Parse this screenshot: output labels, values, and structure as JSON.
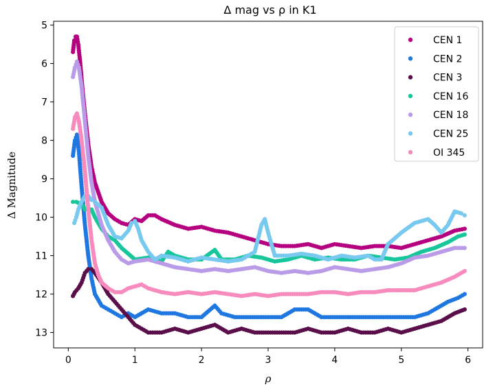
{
  "chart_data": {
    "type": "scatter",
    "title": "Δ mag vs ρ in K1",
    "xlabel": "ρ",
    "ylabel": "Δ Magnitude",
    "xlim": [
      -0.22,
      6.22
    ],
    "ylim": [
      13.4,
      4.9
    ],
    "y_inverted": true,
    "xticks": [
      0,
      1,
      2,
      3,
      4,
      5,
      6
    ],
    "yticks": [
      5,
      6,
      7,
      8,
      9,
      10,
      11,
      12,
      13
    ],
    "grid": false,
    "legend_position": "upper right",
    "series": [
      {
        "name": "CEN 1",
        "color": "#b5007f",
        "points": [
          [
            0.07,
            5.7
          ],
          [
            0.09,
            5.4
          ],
          [
            0.11,
            5.3
          ],
          [
            0.13,
            5.3
          ],
          [
            0.15,
            5.5
          ],
          [
            0.18,
            6.0
          ],
          [
            0.21,
            6.6
          ],
          [
            0.25,
            7.3
          ],
          [
            0.3,
            8.1
          ],
          [
            0.35,
            8.7
          ],
          [
            0.4,
            9.1
          ],
          [
            0.5,
            9.6
          ],
          [
            0.6,
            9.9
          ],
          [
            0.7,
            10.05
          ],
          [
            0.8,
            10.15
          ],
          [
            0.9,
            10.2
          ],
          [
            1.0,
            10.05
          ],
          [
            1.1,
            10.1
          ],
          [
            1.2,
            9.95
          ],
          [
            1.3,
            9.95
          ],
          [
            1.4,
            10.05
          ],
          [
            1.6,
            10.2
          ],
          [
            1.8,
            10.3
          ],
          [
            2.0,
            10.25
          ],
          [
            2.2,
            10.35
          ],
          [
            2.4,
            10.4
          ],
          [
            2.6,
            10.5
          ],
          [
            2.8,
            10.6
          ],
          [
            3.0,
            10.7
          ],
          [
            3.2,
            10.75
          ],
          [
            3.4,
            10.75
          ],
          [
            3.6,
            10.7
          ],
          [
            3.8,
            10.8
          ],
          [
            4.0,
            10.7
          ],
          [
            4.2,
            10.75
          ],
          [
            4.4,
            10.8
          ],
          [
            4.6,
            10.75
          ],
          [
            4.8,
            10.75
          ],
          [
            5.0,
            10.8
          ],
          [
            5.2,
            10.7
          ],
          [
            5.4,
            10.6
          ],
          [
            5.6,
            10.5
          ],
          [
            5.8,
            10.35
          ],
          [
            5.95,
            10.3
          ]
        ]
      },
      {
        "name": "CEN 2",
        "color": "#1f77e0",
        "points": [
          [
            0.07,
            8.4
          ],
          [
            0.1,
            8.0
          ],
          [
            0.13,
            7.85
          ],
          [
            0.16,
            8.3
          ],
          [
            0.2,
            9.2
          ],
          [
            0.25,
            10.2
          ],
          [
            0.3,
            11.0
          ],
          [
            0.35,
            11.6
          ],
          [
            0.4,
            12.0
          ],
          [
            0.5,
            12.3
          ],
          [
            0.6,
            12.4
          ],
          [
            0.7,
            12.5
          ],
          [
            0.8,
            12.6
          ],
          [
            0.9,
            12.5
          ],
          [
            1.0,
            12.6
          ],
          [
            1.2,
            12.4
          ],
          [
            1.4,
            12.5
          ],
          [
            1.6,
            12.5
          ],
          [
            1.8,
            12.6
          ],
          [
            2.0,
            12.6
          ],
          [
            2.2,
            12.3
          ],
          [
            2.3,
            12.5
          ],
          [
            2.5,
            12.6
          ],
          [
            2.8,
            12.6
          ],
          [
            3.0,
            12.6
          ],
          [
            3.2,
            12.6
          ],
          [
            3.4,
            12.4
          ],
          [
            3.6,
            12.4
          ],
          [
            3.8,
            12.6
          ],
          [
            4.0,
            12.6
          ],
          [
            4.4,
            12.6
          ],
          [
            4.8,
            12.6
          ],
          [
            5.2,
            12.6
          ],
          [
            5.4,
            12.5
          ],
          [
            5.5,
            12.4
          ],
          [
            5.7,
            12.2
          ],
          [
            5.85,
            12.1
          ],
          [
            5.95,
            12.0
          ]
        ]
      },
      {
        "name": "CEN 3",
        "color": "#5b0f4a",
        "points": [
          [
            0.07,
            12.05
          ],
          [
            0.1,
            11.95
          ],
          [
            0.15,
            11.85
          ],
          [
            0.2,
            11.7
          ],
          [
            0.25,
            11.45
          ],
          [
            0.3,
            11.35
          ],
          [
            0.35,
            11.35
          ],
          [
            0.4,
            11.45
          ],
          [
            0.5,
            11.7
          ],
          [
            0.6,
            12.0
          ],
          [
            0.7,
            12.2
          ],
          [
            0.8,
            12.4
          ],
          [
            0.9,
            12.6
          ],
          [
            1.0,
            12.8
          ],
          [
            1.1,
            12.9
          ],
          [
            1.2,
            13.0
          ],
          [
            1.4,
            13.0
          ],
          [
            1.6,
            12.9
          ],
          [
            1.8,
            13.0
          ],
          [
            2.0,
            12.9
          ],
          [
            2.2,
            12.8
          ],
          [
            2.4,
            13.0
          ],
          [
            2.6,
            12.9
          ],
          [
            2.8,
            13.0
          ],
          [
            3.0,
            13.0
          ],
          [
            3.4,
            13.0
          ],
          [
            3.6,
            12.9
          ],
          [
            3.8,
            13.0
          ],
          [
            4.0,
            13.0
          ],
          [
            4.2,
            12.9
          ],
          [
            4.4,
            13.0
          ],
          [
            4.6,
            13.0
          ],
          [
            4.8,
            12.9
          ],
          [
            5.0,
            13.0
          ],
          [
            5.2,
            12.9
          ],
          [
            5.4,
            12.8
          ],
          [
            5.6,
            12.7
          ],
          [
            5.8,
            12.5
          ],
          [
            5.95,
            12.4
          ]
        ]
      },
      {
        "name": "CEN 16",
        "color": "#17c69a",
        "points": [
          [
            0.07,
            9.6
          ],
          [
            0.12,
            9.6
          ],
          [
            0.18,
            9.65
          ],
          [
            0.22,
            9.7
          ],
          [
            0.25,
            9.8
          ],
          [
            0.3,
            9.75
          ],
          [
            0.35,
            9.8
          ],
          [
            0.4,
            10.0
          ],
          [
            0.5,
            10.3
          ],
          [
            0.6,
            10.5
          ],
          [
            0.7,
            10.6
          ],
          [
            0.8,
            10.8
          ],
          [
            0.9,
            10.95
          ],
          [
            1.0,
            11.1
          ],
          [
            1.2,
            11.05
          ],
          [
            1.4,
            11.15
          ],
          [
            1.5,
            10.9
          ],
          [
            1.6,
            11.0
          ],
          [
            1.8,
            11.1
          ],
          [
            2.0,
            11.1
          ],
          [
            2.2,
            10.85
          ],
          [
            2.3,
            11.1
          ],
          [
            2.5,
            11.1
          ],
          [
            2.7,
            11.0
          ],
          [
            2.9,
            11.05
          ],
          [
            3.1,
            11.15
          ],
          [
            3.3,
            11.1
          ],
          [
            3.5,
            11.0
          ],
          [
            3.7,
            11.1
          ],
          [
            3.9,
            11.05
          ],
          [
            4.1,
            11.1
          ],
          [
            4.3,
            11.1
          ],
          [
            4.5,
            11.0
          ],
          [
            4.7,
            11.05
          ],
          [
            4.9,
            11.1
          ],
          [
            5.1,
            11.05
          ],
          [
            5.3,
            10.9
          ],
          [
            5.5,
            10.8
          ],
          [
            5.7,
            10.65
          ],
          [
            5.85,
            10.5
          ],
          [
            5.95,
            10.45
          ]
        ]
      },
      {
        "name": "CEN 18",
        "color": "#b99be8",
        "points": [
          [
            0.07,
            6.35
          ],
          [
            0.1,
            6.1
          ],
          [
            0.13,
            5.95
          ],
          [
            0.16,
            6.1
          ],
          [
            0.2,
            6.6
          ],
          [
            0.25,
            7.5
          ],
          [
            0.3,
            8.4
          ],
          [
            0.35,
            9.1
          ],
          [
            0.4,
            9.6
          ],
          [
            0.5,
            10.2
          ],
          [
            0.6,
            10.6
          ],
          [
            0.7,
            10.9
          ],
          [
            0.8,
            11.1
          ],
          [
            0.9,
            11.2
          ],
          [
            1.0,
            11.15
          ],
          [
            1.2,
            11.1
          ],
          [
            1.4,
            11.2
          ],
          [
            1.6,
            11.3
          ],
          [
            1.8,
            11.35
          ],
          [
            2.0,
            11.4
          ],
          [
            2.2,
            11.35
          ],
          [
            2.4,
            11.4
          ],
          [
            2.6,
            11.35
          ],
          [
            2.8,
            11.3
          ],
          [
            3.0,
            11.4
          ],
          [
            3.2,
            11.45
          ],
          [
            3.4,
            11.4
          ],
          [
            3.6,
            11.45
          ],
          [
            3.8,
            11.4
          ],
          [
            4.0,
            11.3
          ],
          [
            4.2,
            11.35
          ],
          [
            4.4,
            11.4
          ],
          [
            4.6,
            11.35
          ],
          [
            4.8,
            11.3
          ],
          [
            5.0,
            11.2
          ],
          [
            5.2,
            11.05
          ],
          [
            5.4,
            11.0
          ],
          [
            5.6,
            10.9
          ],
          [
            5.8,
            10.8
          ],
          [
            5.95,
            10.8
          ]
        ]
      },
      {
        "name": "CEN 25",
        "color": "#78c9f0",
        "points": [
          [
            0.09,
            10.15
          ],
          [
            0.12,
            10.0
          ],
          [
            0.15,
            9.8
          ],
          [
            0.2,
            9.6
          ],
          [
            0.25,
            9.45
          ],
          [
            0.3,
            9.45
          ],
          [
            0.35,
            9.55
          ],
          [
            0.4,
            9.6
          ],
          [
            0.5,
            9.75
          ],
          [
            0.6,
            10.2
          ],
          [
            0.7,
            10.5
          ],
          [
            0.8,
            10.55
          ],
          [
            0.9,
            10.35
          ],
          [
            0.95,
            10.15
          ],
          [
            1.0,
            10.1
          ],
          [
            1.05,
            10.3
          ],
          [
            1.1,
            10.6
          ],
          [
            1.2,
            10.9
          ],
          [
            1.3,
            11.1
          ],
          [
            1.4,
            11.0
          ],
          [
            1.6,
            11.05
          ],
          [
            1.8,
            11.15
          ],
          [
            2.0,
            11.05
          ],
          [
            2.2,
            11.1
          ],
          [
            2.4,
            11.15
          ],
          [
            2.6,
            11.1
          ],
          [
            2.8,
            10.9
          ],
          [
            2.9,
            10.2
          ],
          [
            2.95,
            10.05
          ],
          [
            3.0,
            10.4
          ],
          [
            3.1,
            11.0
          ],
          [
            3.3,
            11.0
          ],
          [
            3.5,
            10.95
          ],
          [
            3.7,
            11.0
          ],
          [
            3.9,
            11.1
          ],
          [
            4.1,
            11.0
          ],
          [
            4.3,
            11.05
          ],
          [
            4.5,
            11.0
          ],
          [
            4.6,
            11.1
          ],
          [
            4.7,
            11.1
          ],
          [
            4.8,
            10.7
          ],
          [
            5.0,
            10.4
          ],
          [
            5.2,
            10.15
          ],
          [
            5.4,
            10.05
          ],
          [
            5.5,
            10.2
          ],
          [
            5.6,
            10.4
          ],
          [
            5.7,
            10.2
          ],
          [
            5.8,
            9.85
          ],
          [
            5.9,
            9.9
          ],
          [
            5.95,
            9.95
          ]
        ]
      },
      {
        "name": "OI 345",
        "color": "#f78bbe",
        "points": [
          [
            0.07,
            7.7
          ],
          [
            0.1,
            7.4
          ],
          [
            0.13,
            7.3
          ],
          [
            0.16,
            7.5
          ],
          [
            0.2,
            8.0
          ],
          [
            0.25,
            8.8
          ],
          [
            0.3,
            9.8
          ],
          [
            0.35,
            10.6
          ],
          [
            0.4,
            11.2
          ],
          [
            0.45,
            11.5
          ],
          [
            0.5,
            11.7
          ],
          [
            0.6,
            11.85
          ],
          [
            0.7,
            11.95
          ],
          [
            0.8,
            11.95
          ],
          [
            0.9,
            11.85
          ],
          [
            1.0,
            11.8
          ],
          [
            1.1,
            11.75
          ],
          [
            1.2,
            11.85
          ],
          [
            1.4,
            11.95
          ],
          [
            1.6,
            12.0
          ],
          [
            1.8,
            11.95
          ],
          [
            2.0,
            12.0
          ],
          [
            2.2,
            11.95
          ],
          [
            2.4,
            12.0
          ],
          [
            2.6,
            12.05
          ],
          [
            2.8,
            12.0
          ],
          [
            3.0,
            12.05
          ],
          [
            3.2,
            12.0
          ],
          [
            3.4,
            12.0
          ],
          [
            3.6,
            12.0
          ],
          [
            3.8,
            11.95
          ],
          [
            4.0,
            11.95
          ],
          [
            4.2,
            12.0
          ],
          [
            4.4,
            11.95
          ],
          [
            4.6,
            11.95
          ],
          [
            4.8,
            11.9
          ],
          [
            5.0,
            11.9
          ],
          [
            5.2,
            11.9
          ],
          [
            5.4,
            11.8
          ],
          [
            5.6,
            11.7
          ],
          [
            5.8,
            11.55
          ],
          [
            5.95,
            11.4
          ]
        ]
      }
    ]
  }
}
